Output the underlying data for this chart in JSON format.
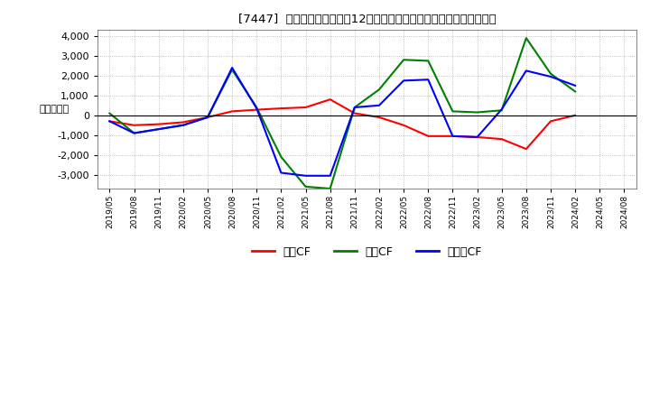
{
  "title": "[7447]  キャッシュフローの12か月移動合計の対前年同期増減額の推移",
  "ylabel": "（百万円）",
  "background_color": "#ffffff",
  "plot_bg_color": "#ffffff",
  "grid_color": "#999999",
  "ylim": [
    -3700,
    4300
  ],
  "yticks": [
    -3000,
    -2000,
    -1000,
    0,
    1000,
    2000,
    3000,
    4000
  ],
  "xtick_labels": [
    "2019/05",
    "2019/08",
    "2019/11",
    "2020/02",
    "2020/05",
    "2020/08",
    "2020/11",
    "2021/02",
    "2021/05",
    "2021/08",
    "2021/11",
    "2022/02",
    "2022/05",
    "2022/08",
    "2022/11",
    "2023/02",
    "2023/05",
    "2023/08",
    "2023/11",
    "2024/02",
    "2024/05",
    "2024/08"
  ],
  "series": {
    "営業CF": {
      "color": "#ff0000",
      "values": [
        -300,
        -500,
        -450,
        -350,
        -100,
        200,
        280,
        350,
        400,
        800,
        100,
        -100,
        -500,
        -1050,
        -1050,
        -1100,
        -1200,
        -1700,
        -300,
        0,
        null,
        null
      ]
    },
    "投資CF": {
      "color": "#008000",
      "values": [
        100,
        -900,
        -700,
        -500,
        -100,
        2300,
        400,
        -2100,
        -3600,
        -3700,
        400,
        1300,
        2800,
        2750,
        200,
        150,
        250,
        3900,
        2100,
        1200,
        null,
        null
      ]
    },
    "フリーCF": {
      "color": "#0000ff",
      "values": [
        -300,
        -900,
        -700,
        -500,
        -100,
        2400,
        350,
        -2900,
        -3050,
        -3050,
        400,
        500,
        1750,
        1800,
        -1050,
        -1100,
        300,
        2250,
        1950,
        1500,
        null,
        null
      ]
    }
  },
  "legend_labels": [
    "営業CF",
    "投資CF",
    "フリーCF"
  ],
  "legend_colors": [
    "#ff0000",
    "#008000",
    "#0000ff"
  ]
}
